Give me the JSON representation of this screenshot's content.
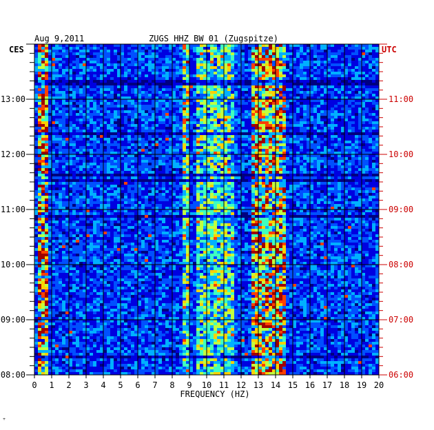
{
  "header": {
    "date": "Aug 9,2011",
    "station": "ZUGS HHZ BW 01 (Zugspitze)"
  },
  "left_axis": {
    "label": "CES"
  },
  "right_axis": {
    "label": "UTC"
  },
  "corner_mark": "⁺",
  "chart_data": {
    "type": "heatmap",
    "title": "ZUGS HHZ BW 01 (Zugspitze)",
    "date": "Aug 9,2011",
    "xlabel": "FREQUENCY (HZ)",
    "xlim": [
      0,
      20
    ],
    "x_ticks": [
      "0",
      "1",
      "2",
      "3",
      "4",
      "5",
      "6",
      "7",
      "8",
      "9",
      "10",
      "11",
      "12",
      "13",
      "14",
      "15",
      "16",
      "17",
      "18",
      "19",
      "20"
    ],
    "y_unit": "hours",
    "ylim": [
      8.0,
      14.0
    ],
    "y_ticks_ces": [
      {
        "value": 8,
        "label": "08:00"
      },
      {
        "value": 9,
        "label": "09:00"
      },
      {
        "value": 10,
        "label": "10:00"
      },
      {
        "value": 11,
        "label": "11:00"
      },
      {
        "value": 12,
        "label": "12:00"
      },
      {
        "value": 13,
        "label": "13:00"
      }
    ],
    "y_ticks_utc": [
      {
        "value": 8,
        "label": "06:00"
      },
      {
        "value": 9,
        "label": "07:00"
      },
      {
        "value": 10,
        "label": "08:00"
      },
      {
        "value": 11,
        "label": "09:00"
      },
      {
        "value": 12,
        "label": "10:00"
      },
      {
        "value": 13,
        "label": "11:00"
      }
    ],
    "grid": true,
    "colormap": [
      "#000080",
      "#0000e0",
      "#0050ff",
      "#00b0ff",
      "#40ffbf",
      "#c0ff40",
      "#ffd000",
      "#ff4000",
      "#a00000"
    ],
    "bright_bands_hz": [
      {
        "range": [
          0.2,
          0.8
        ],
        "level": 0.85
      },
      {
        "range": [
          8.7,
          9.0
        ],
        "level": 0.55
      },
      {
        "range": [
          12.7,
          14.6
        ],
        "level": 0.8
      },
      {
        "range": [
          9.5,
          11.5
        ],
        "level": 0.45
      }
    ]
  },
  "colors": {
    "axis_left": "#000000",
    "axis_right": "#cc0000",
    "background": "#ffffff"
  }
}
